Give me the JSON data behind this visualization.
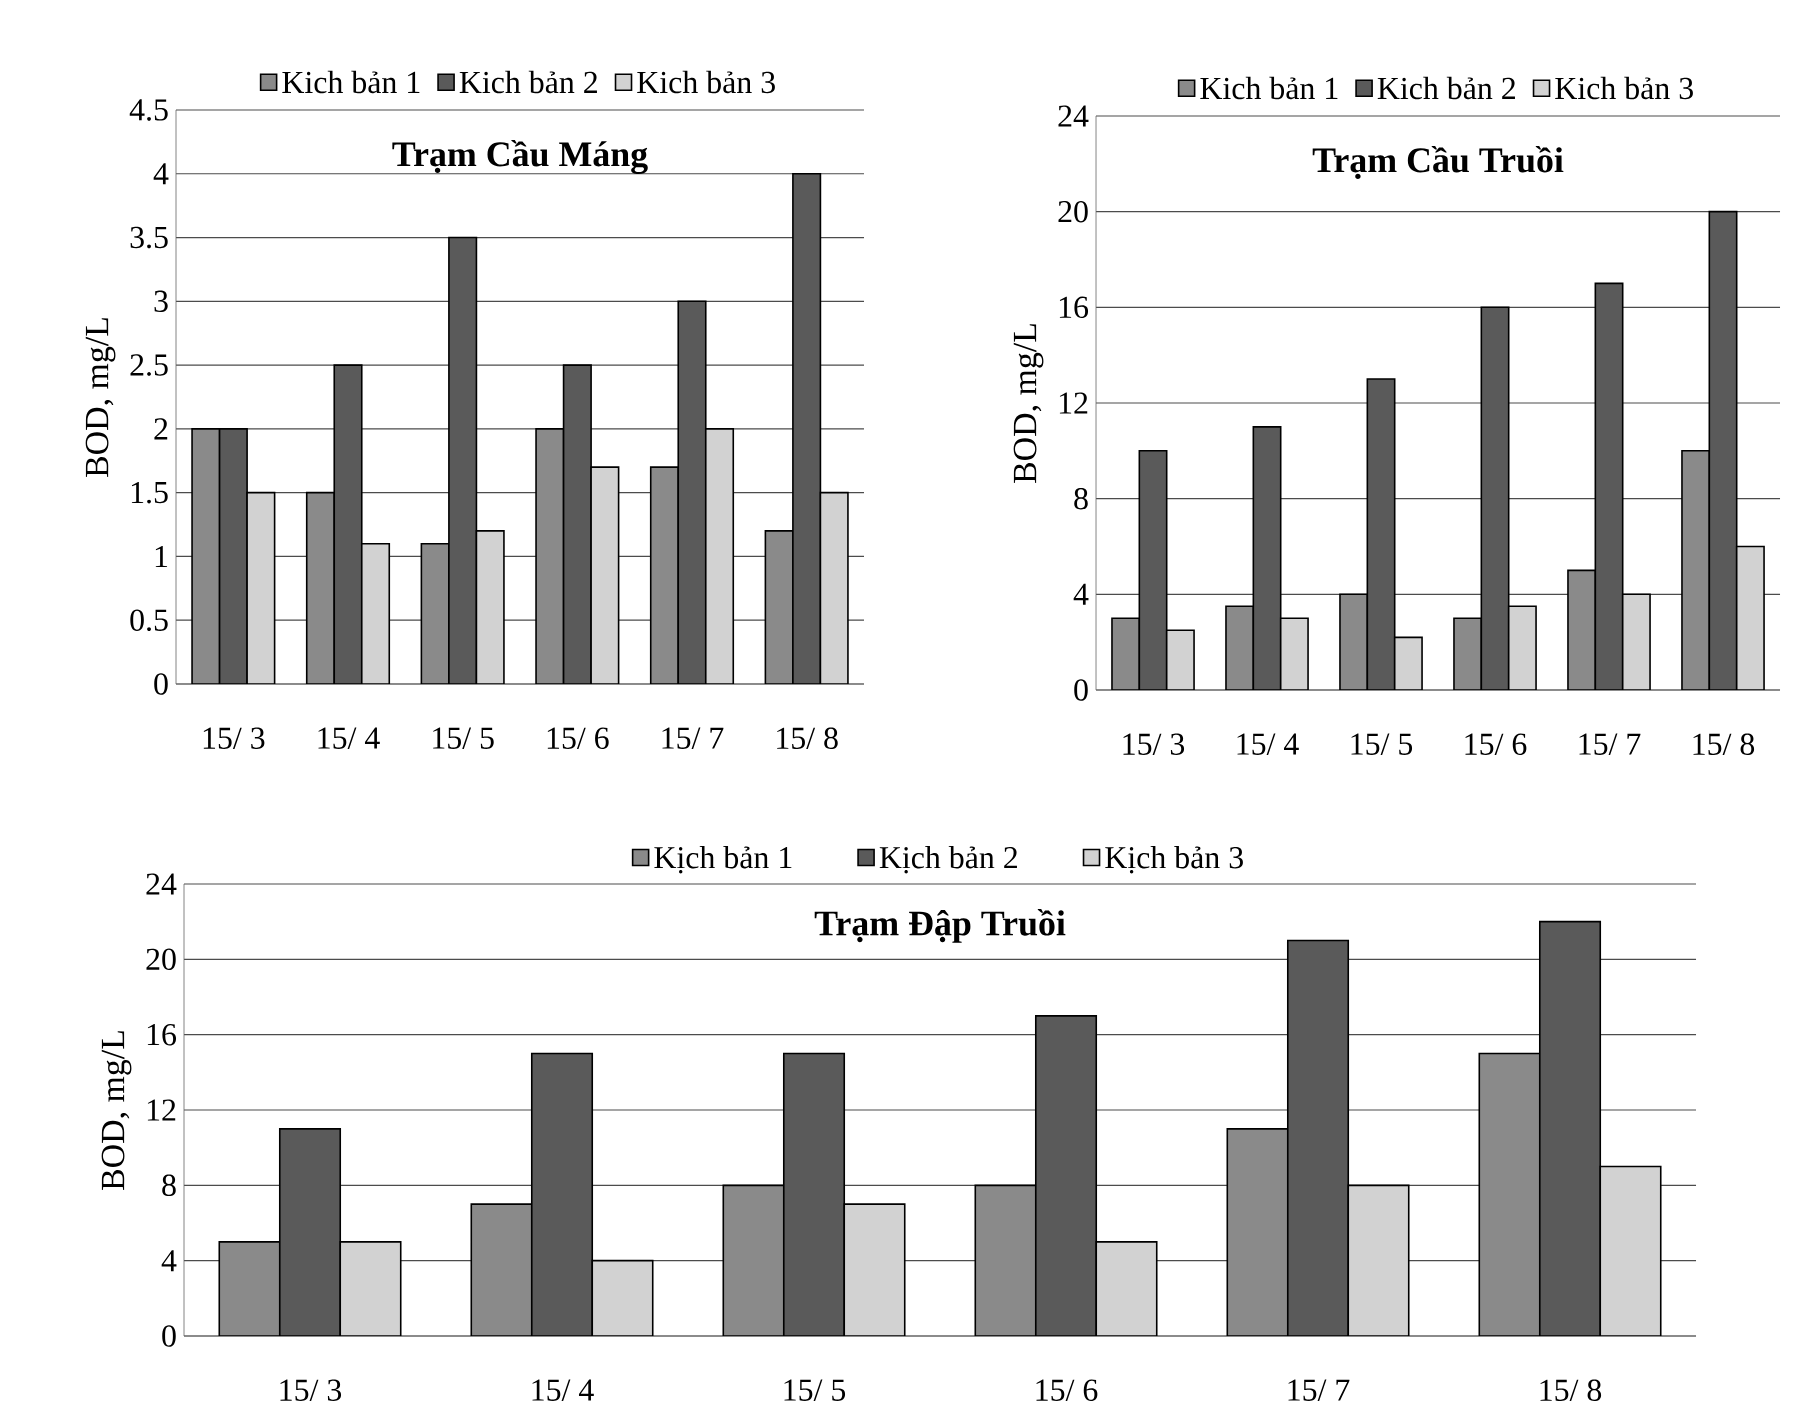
{
  "chart_data": [
    {
      "type": "bar",
      "title": "Trạm Cầu Máng",
      "ylabel": "BOD, mg/L",
      "categories": [
        "15/ 3",
        "15/ 4",
        "15/ 5",
        "15/ 6",
        "15/ 7",
        "15/ 8"
      ],
      "series": [
        {
          "name": "Kich bản 1",
          "color": "#8a8a8a",
          "values": [
            2,
            1.5,
            1.1,
            2,
            1.7,
            1.2
          ]
        },
        {
          "name": "Kich bản 2",
          "color": "#5a5a5a",
          "values": [
            2,
            2.5,
            3.5,
            2.5,
            3,
            4
          ]
        },
        {
          "name": "Kich bản 3",
          "color": "#d2d2d2",
          "values": [
            1.5,
            1.1,
            1.2,
            1.7,
            2,
            1.5
          ]
        }
      ],
      "ylim": [
        0,
        4.5
      ],
      "yticks": [
        0,
        0.5,
        1,
        1.5,
        2,
        2.5,
        3,
        3.5,
        4,
        4.5
      ],
      "grid": "y",
      "legend": "top"
    },
    {
      "type": "bar",
      "title": "Trạm Cầu Truồi",
      "ylabel": "BOD, mg/L",
      "categories": [
        "15/ 3",
        "15/ 4",
        "15/ 5",
        "15/ 6",
        "15/ 7",
        "15/ 8"
      ],
      "series": [
        {
          "name": "Kich bản 1",
          "color": "#8a8a8a",
          "values": [
            3,
            3.5,
            4,
            3,
            5,
            10
          ]
        },
        {
          "name": "Kich bản 2",
          "color": "#5a5a5a",
          "values": [
            10,
            11,
            13,
            16,
            17,
            20
          ]
        },
        {
          "name": "Kich bản 3",
          "color": "#d2d2d2",
          "values": [
            2.5,
            3,
            2.2,
            3.5,
            4,
            6
          ]
        }
      ],
      "ylim": [
        0,
        24
      ],
      "yticks": [
        0,
        4,
        8,
        12,
        16,
        20,
        24
      ],
      "grid": "y",
      "legend": "top"
    },
    {
      "type": "bar",
      "title": "Trạm Đập Truồi",
      "ylabel": "BOD, mg/L",
      "categories": [
        "15/ 3",
        "15/ 4",
        "15/ 5",
        "15/ 6",
        "15/ 7",
        "15/ 8"
      ],
      "series": [
        {
          "name": "Kịch bản 1",
          "color": "#8a8a8a",
          "values": [
            5,
            7,
            8,
            8,
            11,
            15
          ]
        },
        {
          "name": "Kịch bản 2",
          "color": "#5a5a5a",
          "values": [
            11,
            15,
            15,
            17,
            21,
            22
          ]
        },
        {
          "name": "Kịch bản 3",
          "color": "#d2d2d2",
          "values": [
            5,
            4,
            7,
            5,
            8,
            9
          ]
        }
      ],
      "ylim": [
        0,
        24
      ],
      "yticks": [
        0,
        4,
        8,
        12,
        16,
        20,
        24
      ],
      "grid": "y",
      "legend": "top"
    }
  ]
}
